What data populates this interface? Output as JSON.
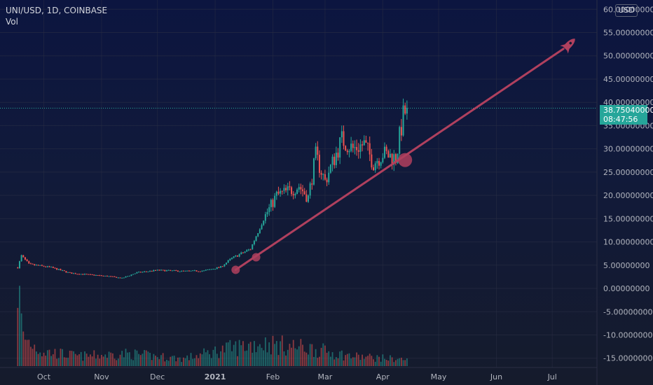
{
  "header": {
    "symbol": "UNI/USD, 1D, COINBASE",
    "indicator": "Vol"
  },
  "currency_button": "USD",
  "last_price": {
    "value": "38.75040000",
    "countdown": "08:47:56"
  },
  "colors": {
    "up": "#26a69a",
    "down": "#ef5350",
    "trendline": "#b0405e",
    "pricetag": "#26a69a"
  },
  "icons": [
    "rocket-icon"
  ],
  "chart_data": {
    "type": "candlestick",
    "title": "UNI/USD, 1D, COINBASE",
    "y_ticks": [
      "60.00000000",
      "55.00000000",
      "50.00000000",
      "45.00000000",
      "40.00000000",
      "35.00000000",
      "30.00000000",
      "25.00000000",
      "20.00000000",
      "15.00000000",
      "10.00000000",
      "5.00000000",
      "0.00000000",
      "-5.00000000",
      "-10.00000000",
      "-15.00000000"
    ],
    "y_tick_values": [
      60,
      55,
      50,
      45,
      40,
      35,
      30,
      25,
      20,
      15,
      10,
      5,
      0,
      -5,
      -10,
      -15
    ],
    "x_ticks": [
      "Oct",
      "Nov",
      "Dec",
      "2021",
      "Feb",
      "Mar",
      "Apr",
      "May",
      "Jun",
      "Jul"
    ],
    "x_tick_dates": [
      "2020-10-01",
      "2020-11-01",
      "2020-12-01",
      "2021-01-01",
      "2021-02-01",
      "2021-03-01",
      "2021-04-01",
      "2021-05-01",
      "2021-06-01",
      "2021-07-01"
    ],
    "ylim": [
      -17,
      62
    ],
    "xlim": [
      "2020-09-15",
      "2021-07-25"
    ],
    "grid": true,
    "last_price": 38.7504,
    "price_keyframes": [
      [
        "2020-09-17",
        4.5
      ],
      [
        "2020-09-19",
        7.0
      ],
      [
        "2020-09-23",
        5.2
      ],
      [
        "2020-10-05",
        4.5
      ],
      [
        "2020-10-15",
        3.3
      ],
      [
        "2020-11-05",
        2.6
      ],
      [
        "2020-11-12",
        2.2
      ],
      [
        "2020-11-20",
        3.4
      ],
      [
        "2020-12-01",
        3.9
      ],
      [
        "2020-12-15",
        3.7
      ],
      [
        "2020-12-26",
        3.8
      ],
      [
        "2021-01-04",
        4.6
      ],
      [
        "2021-01-10",
        6.5
      ],
      [
        "2021-01-20",
        8.5
      ],
      [
        "2021-01-27",
        15.0
      ],
      [
        "2021-02-03",
        20.0
      ],
      [
        "2021-02-10",
        21.0
      ],
      [
        "2021-02-15",
        22.0
      ],
      [
        "2021-02-20",
        19.5
      ],
      [
        "2021-02-24",
        28.5
      ],
      [
        "2021-03-01",
        23.0
      ],
      [
        "2021-03-06",
        28.0
      ],
      [
        "2021-03-10",
        32.0
      ],
      [
        "2021-03-16",
        30.0
      ],
      [
        "2021-03-22",
        31.0
      ],
      [
        "2021-03-27",
        27.0
      ],
      [
        "2021-04-01",
        29.0
      ],
      [
        "2021-04-08",
        28.0
      ],
      [
        "2021-04-12",
        37.0
      ],
      [
        "2021-04-14",
        38.75
      ]
    ],
    "volume_keyframes": [
      [
        "2020-09-17",
        100
      ],
      [
        "2020-09-20",
        35
      ],
      [
        "2020-09-30",
        18
      ],
      [
        "2020-10-20",
        12
      ],
      [
        "2020-11-15",
        15
      ],
      [
        "2020-12-15",
        9
      ],
      [
        "2021-01-05",
        20
      ],
      [
        "2021-01-25",
        28
      ],
      [
        "2021-02-20",
        22
      ],
      [
        "2021-03-15",
        12
      ],
      [
        "2021-04-14",
        8
      ]
    ],
    "trendline": {
      "start": [
        "2021-01-12",
        4.0
      ],
      "end": [
        "2021-07-07",
        51.5
      ]
    },
    "touch_points": [
      [
        "2021-01-12",
        4.0
      ],
      [
        "2021-01-23",
        6.7
      ],
      [
        "2021-04-13",
        27.6
      ]
    ]
  }
}
